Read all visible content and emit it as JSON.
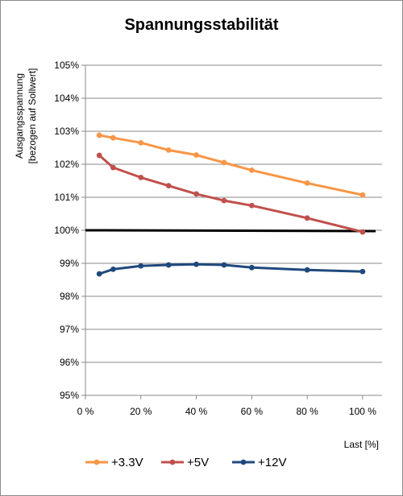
{
  "chart_data": {
    "type": "line",
    "title": "Spannungsstabilität",
    "ylabel_lines": [
      "Ausgangsspannung",
      "[bezogen auf Sollwert]"
    ],
    "xlabel": "Last [%]",
    "xlim": [
      0,
      107
    ],
    "ylim": [
      95,
      105
    ],
    "x_ticks": [
      0,
      20,
      40,
      60,
      80,
      100
    ],
    "x_tick_labels": [
      "0 %",
      "20 %",
      "40 %",
      "60 %",
      "80 %",
      "100 %"
    ],
    "y_ticks": [
      95,
      96,
      97,
      98,
      99,
      100,
      101,
      102,
      103,
      104,
      105
    ],
    "y_tick_labels": [
      "95%",
      "96%",
      "97%",
      "98%",
      "99%",
      "100%",
      "101%",
      "102%",
      "103%",
      "104%",
      "105%"
    ],
    "grid": "horizontal",
    "legend_position": "bottom",
    "reference_line": {
      "y": 100,
      "color": "#000000"
    },
    "series": [
      {
        "name": "+3.3V",
        "color": "#f79646",
        "x": [
          5,
          10,
          20,
          30,
          40,
          50,
          60,
          80,
          100
        ],
        "values": [
          102.88,
          102.8,
          102.65,
          102.43,
          102.28,
          102.05,
          101.82,
          101.43,
          101.07
        ]
      },
      {
        "name": "+5V",
        "color": "#c0504d",
        "x": [
          5,
          10,
          20,
          30,
          40,
          50,
          60,
          80,
          100
        ],
        "values": [
          102.27,
          101.9,
          101.6,
          101.35,
          101.1,
          100.9,
          100.75,
          100.37,
          99.95
        ]
      },
      {
        "name": "+12V",
        "color": "#1f497d",
        "x": [
          5,
          10,
          20,
          30,
          40,
          50,
          60,
          80,
          100
        ],
        "values": [
          98.68,
          98.82,
          98.92,
          98.95,
          98.97,
          98.95,
          98.87,
          98.8,
          98.75
        ]
      }
    ]
  }
}
